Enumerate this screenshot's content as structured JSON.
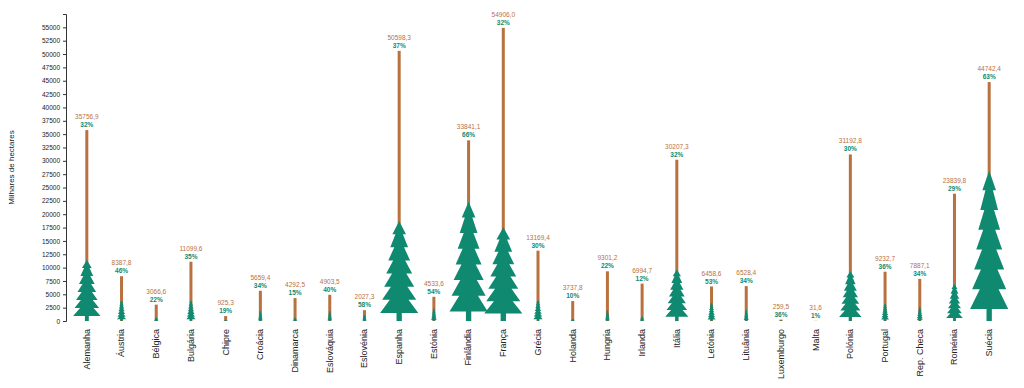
{
  "chart_data": {
    "type": "bar",
    "y_label": "Milhares de hectares",
    "categories": [
      "Alemanha",
      "Áustria",
      "Bélgica",
      "Bulgária",
      "Chipre",
      "Croácia",
      "Dinamarca",
      "Eslováquia",
      "Eslovénia",
      "Espanha",
      "Estónia",
      "Finlândia",
      "França",
      "Grécia",
      "Holanda",
      "Hungria",
      "Irlanda",
      "Itália",
      "Letónia",
      "Lituânia",
      "Luxemburgo",
      "Malta",
      "Polónia",
      "Portugal",
      "Rep. Checa",
      "Roménia",
      "Suécia"
    ],
    "series": [
      {
        "type": "bar",
        "color": "#b8713f",
        "values": [
          35756.9,
          8387.8,
          3066.6,
          11099.6,
          925.3,
          5659.4,
          4292.5,
          4903.5,
          2027.3,
          50598.3,
          4533.6,
          33841.1,
          54906.0,
          13169.4,
          3737.8,
          9301.2,
          6994.7,
          30207.3,
          6458.6,
          6528.4,
          259.5,
          31.6,
          31192.8,
          9232.7,
          7887.1,
          23839.8,
          44742.4
        ],
        "value_labels": [
          "35756,9",
          "8387,8",
          "3066,6",
          "11099,6",
          "925,3",
          "5659,4",
          "4292,5",
          "4903,5",
          "2027,3",
          "50598,3",
          "4533,6",
          "33841,1",
          "54906,0",
          "13169,4",
          "3737,8",
          "9301,2",
          "6994,7",
          "30207,3",
          "6458,6",
          "6528,4",
          "259,5",
          "31,6",
          "31192,8",
          "9232,7",
          "7887,1",
          "23839,8",
          "44742,4"
        ]
      },
      {
        "type": "tree",
        "color": "#0f8a70",
        "values": [
          11442,
          3858,
          675,
          3885,
          176,
          1924,
          644,
          1961,
          1176,
          18721,
          2448,
          22335,
          17570,
          3951,
          374,
          2046,
          839,
          9666,
          3423,
          2220,
          93,
          0.3,
          9358,
          3324,
          2682,
          6914,
          28188
        ]
      }
    ],
    "shares": [
      32,
      46,
      22,
      35,
      19,
      34,
      15,
      40,
      58,
      37,
      54,
      66,
      32,
      30,
      10,
      22,
      12,
      32,
      53,
      34,
      36,
      1,
      30,
      36,
      34,
      29,
      63
    ],
    "share_labels": [
      "32%",
      "46%",
      "22%",
      "35%",
      "19%",
      "34%",
      "15%",
      "40%",
      "58%",
      "37%",
      "54%",
      "66%",
      "32%",
      "30%",
      "10%",
      "22%",
      "12%",
      "32%",
      "53%",
      "34%",
      "36%",
      "1%",
      "30%",
      "36%",
      "34%",
      "29%",
      "63%"
    ],
    "ylim": [
      0,
      57500
    ],
    "yticks": [
      0,
      2500,
      5000,
      7500,
      10000,
      12500,
      15000,
      17500,
      20000,
      22500,
      25000,
      27500,
      30000,
      32500,
      35000,
      37500,
      40000,
      42500,
      45000,
      47500,
      50000,
      52500,
      55000
    ],
    "grid": false,
    "data_labels": true
  }
}
